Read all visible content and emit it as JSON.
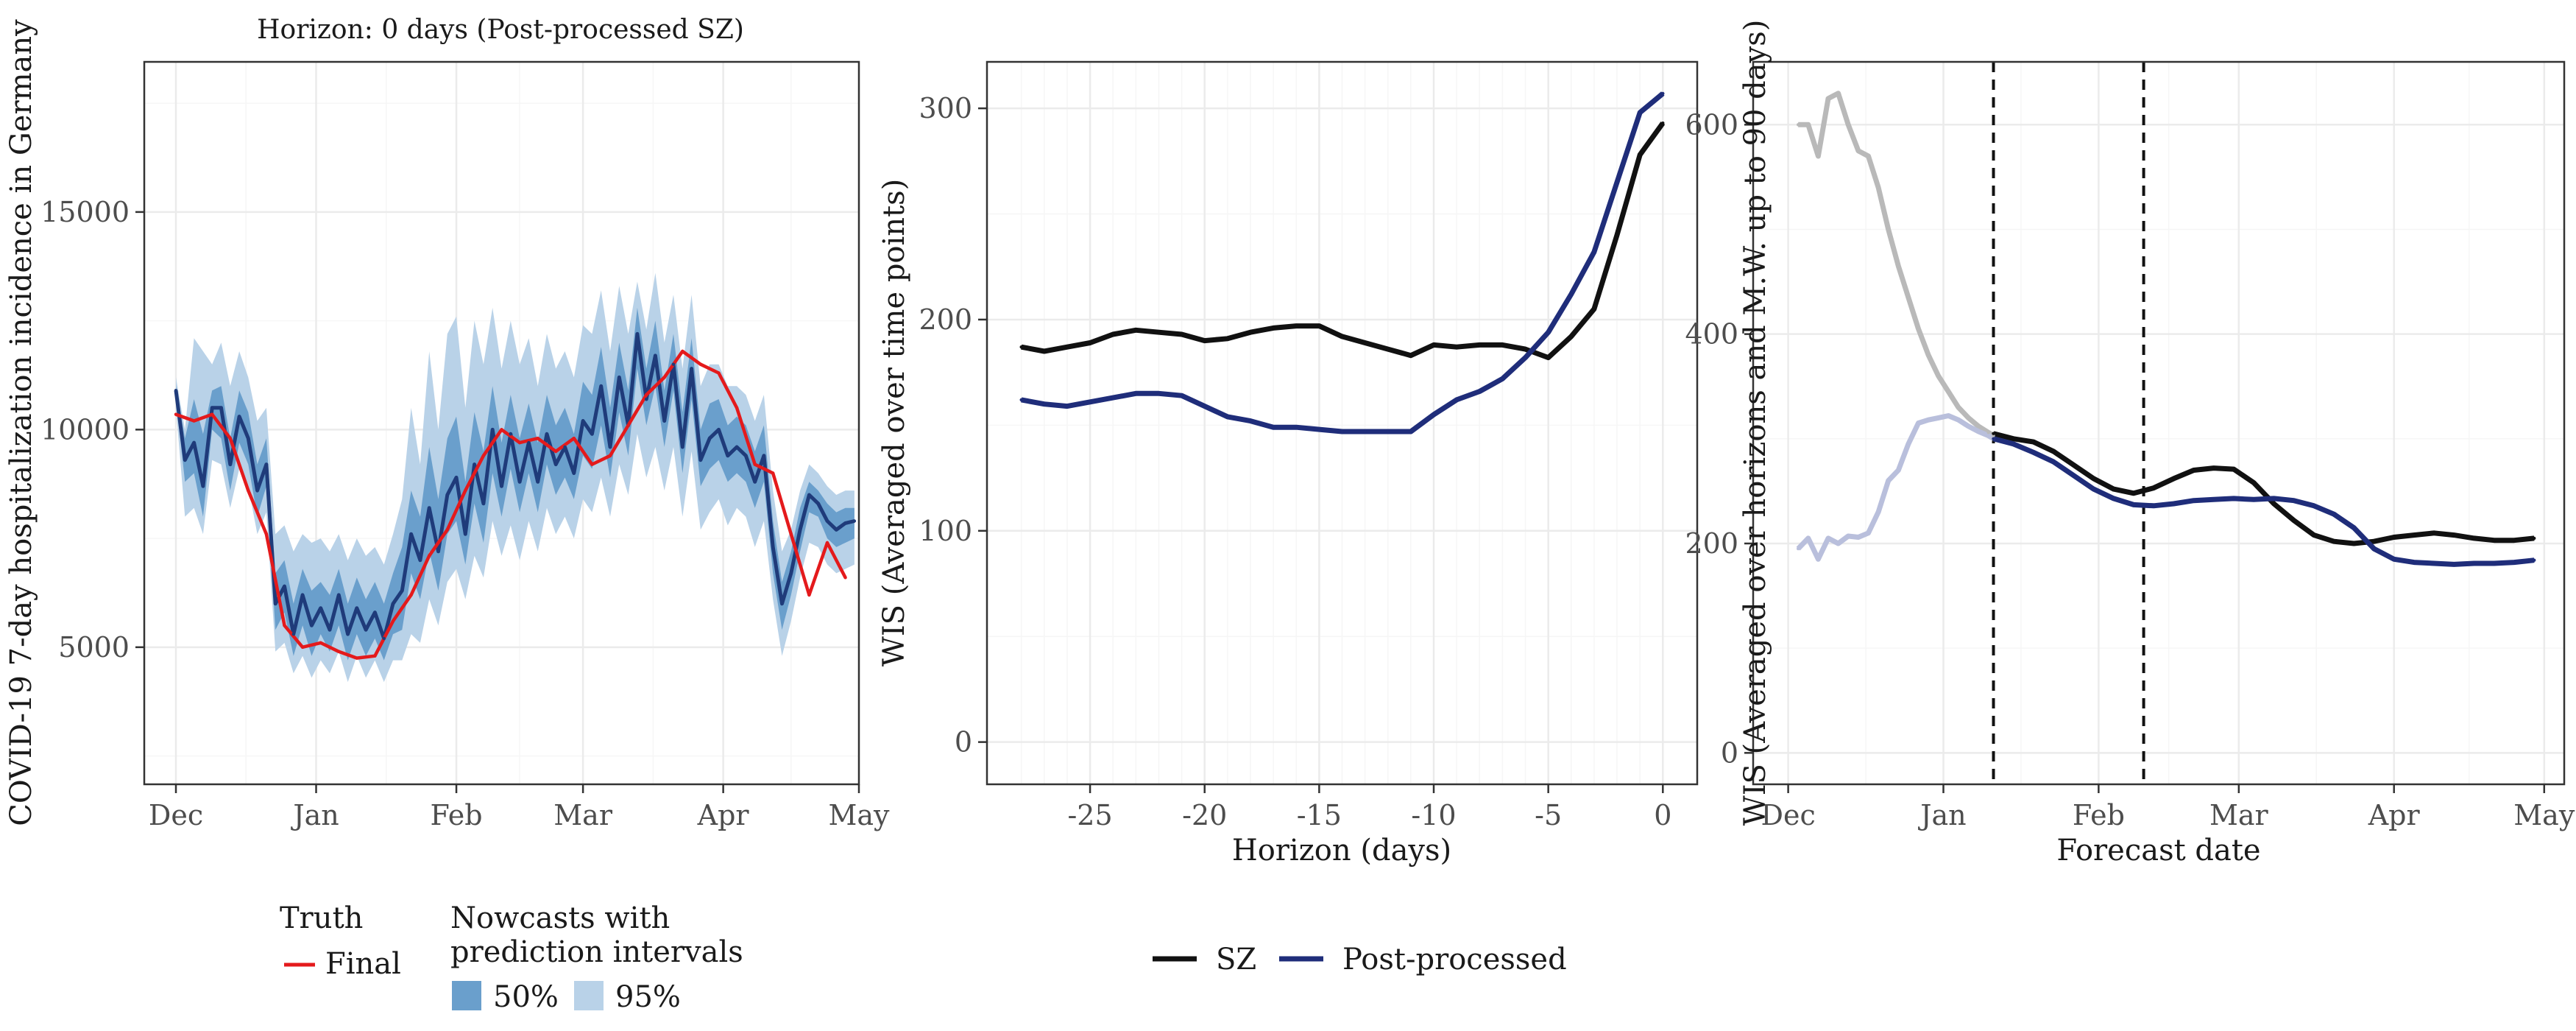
{
  "colors": {
    "truth": "#e41a1c",
    "nowcast_line": "#1f3b7a",
    "band50": "#6a9fcc",
    "band95": "#b9d2e8",
    "sz": "#111111",
    "post_processed": "#1f2d7a",
    "faded_sz": "#b9b9b9",
    "faded_post": "#b9bfdc",
    "grid_major": "#ebebeb",
    "grid_minor": "#f6f6f6",
    "panel_border": "#333333"
  },
  "chart_data": [
    {
      "type": "line",
      "subtitle": "Horizon: 0 days (Post-processed SZ)",
      "xlabel": "",
      "ylabel": "COVID-19 7-day hospitalization incidence in Germany",
      "x_ticks": [
        "Dec",
        "Jan",
        "Feb",
        "Mar",
        "Apr",
        "May"
      ],
      "x_tick_dates": [
        "2021-12-01",
        "2022-01-01",
        "2022-02-01",
        "2022-03-01",
        "2022-04-01",
        "2022-05-01"
      ],
      "xlim": [
        "2021-11-24",
        "2022-05-01"
      ],
      "ylim": [
        1850,
        18450
      ],
      "y_ticks": [
        5000,
        10000,
        15000
      ],
      "grid": true,
      "series": [
        {
          "name": "Final",
          "role": "truth",
          "x": [
            "2021-12-01",
            "2021-12-05",
            "2021-12-09",
            "2021-12-13",
            "2021-12-17",
            "2021-12-21",
            "2021-12-25",
            "2021-12-29",
            "2022-01-02",
            "2022-01-06",
            "2022-01-10",
            "2022-01-14",
            "2022-01-18",
            "2022-01-22",
            "2022-01-26",
            "2022-01-30",
            "2022-02-03",
            "2022-02-07",
            "2022-02-11",
            "2022-02-15",
            "2022-02-19",
            "2022-02-23",
            "2022-02-27",
            "2022-03-03",
            "2022-03-07",
            "2022-03-11",
            "2022-03-15",
            "2022-03-19",
            "2022-03-23",
            "2022-03-27",
            "2022-03-31",
            "2022-04-04",
            "2022-04-08",
            "2022-04-12",
            "2022-04-16",
            "2022-04-20",
            "2022-04-24",
            "2022-04-28"
          ],
          "y": [
            10350,
            10200,
            10350,
            9800,
            8600,
            7600,
            5500,
            5000,
            5100,
            4900,
            4750,
            4800,
            5600,
            6200,
            7100,
            7700,
            8600,
            9400,
            10000,
            9700,
            9800,
            9500,
            9800,
            9200,
            9400,
            10100,
            10800,
            11200,
            11800,
            11500,
            11300,
            10500,
            9200,
            9000,
            7600,
            6200,
            7400,
            6600
          ]
        },
        {
          "name": "Nowcast median",
          "role": "nowcast",
          "x": [
            "2021-12-01",
            "2021-12-03",
            "2021-12-05",
            "2021-12-07",
            "2021-12-09",
            "2021-12-11",
            "2021-12-13",
            "2021-12-15",
            "2021-12-17",
            "2021-12-19",
            "2021-12-21",
            "2021-12-23",
            "2021-12-25",
            "2021-12-27",
            "2021-12-29",
            "2021-12-31",
            "2022-01-02",
            "2022-01-04",
            "2022-01-06",
            "2022-01-08",
            "2022-01-10",
            "2022-01-12",
            "2022-01-14",
            "2022-01-16",
            "2022-01-18",
            "2022-01-20",
            "2022-01-22",
            "2022-01-24",
            "2022-01-26",
            "2022-01-28",
            "2022-01-30",
            "2022-02-01",
            "2022-02-03",
            "2022-02-05",
            "2022-02-07",
            "2022-02-09",
            "2022-02-11",
            "2022-02-13",
            "2022-02-15",
            "2022-02-17",
            "2022-02-19",
            "2022-02-21",
            "2022-02-23",
            "2022-02-25",
            "2022-02-27",
            "2022-03-01",
            "2022-03-03",
            "2022-03-05",
            "2022-03-07",
            "2022-03-09",
            "2022-03-11",
            "2022-03-13",
            "2022-03-15",
            "2022-03-17",
            "2022-03-19",
            "2022-03-21",
            "2022-03-23",
            "2022-03-25",
            "2022-03-27",
            "2022-03-29",
            "2022-03-31",
            "2022-04-02",
            "2022-04-04",
            "2022-04-06",
            "2022-04-08",
            "2022-04-10",
            "2022-04-12",
            "2022-04-14",
            "2022-04-16",
            "2022-04-18",
            "2022-04-20",
            "2022-04-22",
            "2022-04-24",
            "2022-04-26",
            "2022-04-28",
            "2022-04-30"
          ],
          "y": [
            10900,
            9300,
            9700,
            8700,
            10500,
            10500,
            9200,
            10300,
            9800,
            8600,
            9200,
            6000,
            6400,
            5300,
            6200,
            5500,
            5900,
            5400,
            6200,
            5300,
            5900,
            5400,
            5800,
            5200,
            6000,
            6300,
            7600,
            7000,
            8200,
            7200,
            8500,
            8900,
            7600,
            9200,
            8300,
            10000,
            8700,
            9900,
            8800,
            9700,
            8800,
            9900,
            9200,
            9600,
            9000,
            10200,
            9900,
            11000,
            9600,
            11200,
            10100,
            12200,
            10700,
            11700,
            10200,
            11500,
            9600,
            11400,
            9300,
            9800,
            10000,
            9400,
            9600,
            9400,
            8800,
            9400,
            7300,
            6000,
            6700,
            7700,
            8500,
            8300,
            7900,
            7700,
            7850,
            7900
          ]
        }
      ],
      "band95_upper": [
        11200,
        10000,
        12100,
        11800,
        11500,
        12000,
        11000,
        11800,
        11200,
        10200,
        10500,
        7600,
        7800,
        7200,
        7600,
        7400,
        7500,
        7200,
        7600,
        7000,
        7500,
        7100,
        7300,
        6900,
        7600,
        8400,
        10500,
        9200,
        11800,
        10000,
        12200,
        12600,
        10500,
        12500,
        11500,
        12800,
        11400,
        12500,
        11500,
        12100,
        11000,
        12200,
        11400,
        11800,
        11200,
        12400,
        12200,
        13200,
        11800,
        13300,
        12200,
        13400,
        12300,
        13600,
        12000,
        13100,
        11400,
        13100,
        11000,
        11500,
        11500,
        11000,
        11000,
        10800,
        10200,
        10800,
        8600,
        7200,
        7700,
        8600,
        9200,
        9000,
        8700,
        8500,
        8600,
        8600
      ],
      "band95_lower": [
        10500,
        8000,
        8200,
        7600,
        9300,
        9200,
        8200,
        9100,
        8700,
        7600,
        8100,
        4900,
        5100,
        4400,
        4800,
        4300,
        4700,
        4400,
        4900,
        4200,
        4800,
        4300,
        4700,
        4200,
        4700,
        4700,
        5300,
        5100,
        6100,
        5500,
        6500,
        6800,
        6100,
        7100,
        6600,
        7900,
        7100,
        7800,
        7000,
        7900,
        7200,
        8200,
        7600,
        8000,
        7500,
        8400,
        8100,
        8900,
        8000,
        9200,
        8500,
        9900,
        8900,
        9600,
        8600,
        9600,
        8000,
        9500,
        7700,
        8100,
        8400,
        7800,
        8200,
        8000,
        7300,
        7900,
        6100,
        4800,
        5600,
        6600,
        7400,
        7300,
        6900,
        6700,
        6800,
        6900
      ],
      "band50_upper": [
        11000,
        9800,
        10700,
        9900,
        10900,
        11000,
        9800,
        10900,
        10400,
        9200,
        9800,
        6700,
        7000,
        6000,
        6800,
        6300,
        6500,
        6200,
        6800,
        6000,
        6600,
        6100,
        6500,
        6000,
        6700,
        7300,
        8600,
        8000,
        9600,
        8400,
        9800,
        10300,
        8800,
        10400,
        9500,
        11000,
        9700,
        10800,
        9800,
        10600,
        9700,
        10800,
        10100,
        10500,
        9900,
        11100,
        10800,
        11900,
        10500,
        12000,
        10900,
        12800,
        11400,
        12500,
        10900,
        12200,
        10400,
        12100,
        10000,
        10600,
        10700,
        10100,
        10300,
        10100,
        9500,
        10100,
        7900,
        6500,
        7200,
        8200,
        8800,
        8600,
        8300,
        8100,
        8200,
        8200
      ],
      "band50_lower": [
        10700,
        8800,
        9000,
        8000,
        10000,
        9800,
        8600,
        9700,
        9200,
        8000,
        8700,
        5400,
        5800,
        4800,
        5500,
        4800,
        5300,
        4900,
        5500,
        4700,
        5300,
        4800,
        5200,
        4700,
        5300,
        5400,
        6700,
        6100,
        7200,
        6300,
        7600,
        7900,
        6900,
        8300,
        7400,
        9000,
        8000,
        9100,
        8100,
        9000,
        8100,
        9200,
        8500,
        8900,
        8400,
        9400,
        9100,
        10100,
        8900,
        10400,
        9400,
        11400,
        10100,
        11000,
        9600,
        10900,
        9000,
        10700,
        8700,
        9100,
        9300,
        8800,
        9000,
        8800,
        8200,
        8800,
        6700,
        5400,
        6200,
        7200,
        8100,
        8000,
        7500,
        7300,
        7400,
        7500
      ]
    },
    {
      "type": "line",
      "xlabel": "Horizon (days)",
      "ylabel": "WIS (Averaged over time points)",
      "x_ticks": [
        -25,
        -20,
        -15,
        -10,
        -5,
        0
      ],
      "xlim": [
        -29.5,
        1.5
      ],
      "ylim": [
        -20,
        322
      ],
      "y_ticks": [
        0,
        100,
        200,
        300
      ],
      "grid": true,
      "series": [
        {
          "name": "SZ",
          "x": [
            -28,
            -27,
            -26,
            -25,
            -24,
            -23,
            -22,
            -21,
            -20,
            -19,
            -18,
            -17,
            -16,
            -15,
            -14,
            -13,
            -12,
            -11,
            -10,
            -9,
            -8,
            -7,
            -6,
            -5,
            -4,
            -3,
            -2,
            -1,
            0
          ],
          "y": [
            187,
            185,
            187,
            189,
            193,
            195,
            194,
            193,
            190,
            191,
            194,
            196,
            197,
            197,
            192,
            189,
            186,
            183,
            188,
            187,
            188,
            188,
            186,
            182,
            192,
            205,
            240,
            278,
            293
          ]
        },
        {
          "name": "Post-processed",
          "x": [
            -28,
            -27,
            -26,
            -25,
            -24,
            -23,
            -22,
            -21,
            -20,
            -19,
            -18,
            -17,
            -16,
            -15,
            -14,
            -13,
            -12,
            -11,
            -10,
            -9,
            -8,
            -7,
            -6,
            -5,
            -4,
            -3,
            -2,
            -1,
            0
          ],
          "y": [
            162,
            160,
            159,
            161,
            163,
            165,
            165,
            164,
            159,
            154,
            152,
            149,
            149,
            148,
            147,
            147,
            147,
            147,
            155,
            162,
            166,
            172,
            182,
            194,
            212,
            232,
            265,
            298,
            307
          ]
        }
      ]
    },
    {
      "type": "line",
      "xlabel": "Forecast date",
      "ylabel": "WIS (Averaged over horizons and M.W. up to 90 days)",
      "x_ticks": [
        "Dec",
        "Jan",
        "Feb",
        "Mar",
        "Apr",
        "May"
      ],
      "x_tick_dates": [
        "2021-12-01",
        "2022-01-01",
        "2022-02-01",
        "2022-03-01",
        "2022-04-01",
        "2022-05-01"
      ],
      "xlim": [
        "2021-11-24",
        "2022-05-05"
      ],
      "ylim": [
        -30,
        660
      ],
      "y_ticks": [
        0,
        200,
        400,
        600
      ],
      "vlines": [
        "2022-01-11",
        "2022-02-10"
      ],
      "grid": true,
      "series": [
        {
          "name": "SZ (faded)",
          "role": "faded_sz",
          "x": [
            "2021-12-03",
            "2021-12-05",
            "2021-12-07",
            "2021-12-09",
            "2021-12-11",
            "2021-12-13",
            "2021-12-15",
            "2021-12-17",
            "2021-12-19",
            "2021-12-21",
            "2021-12-23",
            "2021-12-25",
            "2021-12-27",
            "2021-12-29",
            "2021-12-31",
            "2022-01-02",
            "2022-01-04",
            "2022-01-06",
            "2022-01-08",
            "2022-01-10",
            "2022-01-11"
          ],
          "y": [
            600,
            600,
            570,
            625,
            630,
            600,
            575,
            570,
            540,
            500,
            465,
            435,
            405,
            380,
            360,
            345,
            330,
            320,
            312,
            306,
            303
          ]
        },
        {
          "name": "Post-processed (faded)",
          "role": "faded_post",
          "x": [
            "2021-12-03",
            "2021-12-05",
            "2021-12-07",
            "2021-12-09",
            "2021-12-11",
            "2021-12-13",
            "2021-12-15",
            "2021-12-17",
            "2021-12-19",
            "2021-12-21",
            "2021-12-23",
            "2021-12-25",
            "2021-12-27",
            "2021-12-29",
            "2021-12-31",
            "2022-01-02",
            "2022-01-04",
            "2022-01-06",
            "2022-01-08",
            "2022-01-10",
            "2022-01-11"
          ],
          "y": [
            195,
            205,
            185,
            205,
            200,
            207,
            206,
            210,
            230,
            260,
            270,
            295,
            315,
            318,
            320,
            322,
            318,
            312,
            307,
            303,
            300
          ]
        },
        {
          "name": "SZ",
          "x": [
            "2022-01-11",
            "2022-01-15",
            "2022-01-19",
            "2022-01-23",
            "2022-01-27",
            "2022-01-31",
            "2022-02-04",
            "2022-02-08",
            "2022-02-12",
            "2022-02-16",
            "2022-02-20",
            "2022-02-24",
            "2022-02-28",
            "2022-03-04",
            "2022-03-08",
            "2022-03-12",
            "2022-03-16",
            "2022-03-20",
            "2022-03-24",
            "2022-03-28",
            "2022-04-01",
            "2022-04-05",
            "2022-04-09",
            "2022-04-13",
            "2022-04-17",
            "2022-04-21",
            "2022-04-25",
            "2022-04-29"
          ],
          "y": [
            305,
            300,
            297,
            288,
            275,
            262,
            252,
            248,
            253,
            262,
            270,
            272,
            271,
            258,
            238,
            222,
            208,
            202,
            200,
            202,
            206,
            208,
            210,
            208,
            205,
            203,
            203,
            205
          ]
        },
        {
          "name": "Post-processed",
          "x": [
            "2022-01-11",
            "2022-01-15",
            "2022-01-19",
            "2022-01-23",
            "2022-01-27",
            "2022-01-31",
            "2022-02-04",
            "2022-02-08",
            "2022-02-12",
            "2022-02-16",
            "2022-02-20",
            "2022-02-24",
            "2022-02-28",
            "2022-03-04",
            "2022-03-08",
            "2022-03-12",
            "2022-03-16",
            "2022-03-20",
            "2022-03-24",
            "2022-03-28",
            "2022-04-01",
            "2022-04-05",
            "2022-04-09",
            "2022-04-13",
            "2022-04-17",
            "2022-04-21",
            "2022-04-25",
            "2022-04-29"
          ],
          "y": [
            300,
            295,
            287,
            278,
            265,
            252,
            243,
            237,
            236,
            238,
            241,
            242,
            243,
            242,
            243,
            241,
            236,
            228,
            215,
            195,
            185,
            182,
            181,
            180,
            181,
            181,
            182,
            184
          ]
        }
      ]
    }
  ],
  "legend": {
    "truth_title": "Truth",
    "truth_item": "Final",
    "nowcast_title_1": "Nowcasts with",
    "nowcast_title_2": "prediction intervals",
    "band50_label": "50%",
    "band95_label": "95%",
    "sz_label": "SZ",
    "post_label": "Post-processed"
  }
}
